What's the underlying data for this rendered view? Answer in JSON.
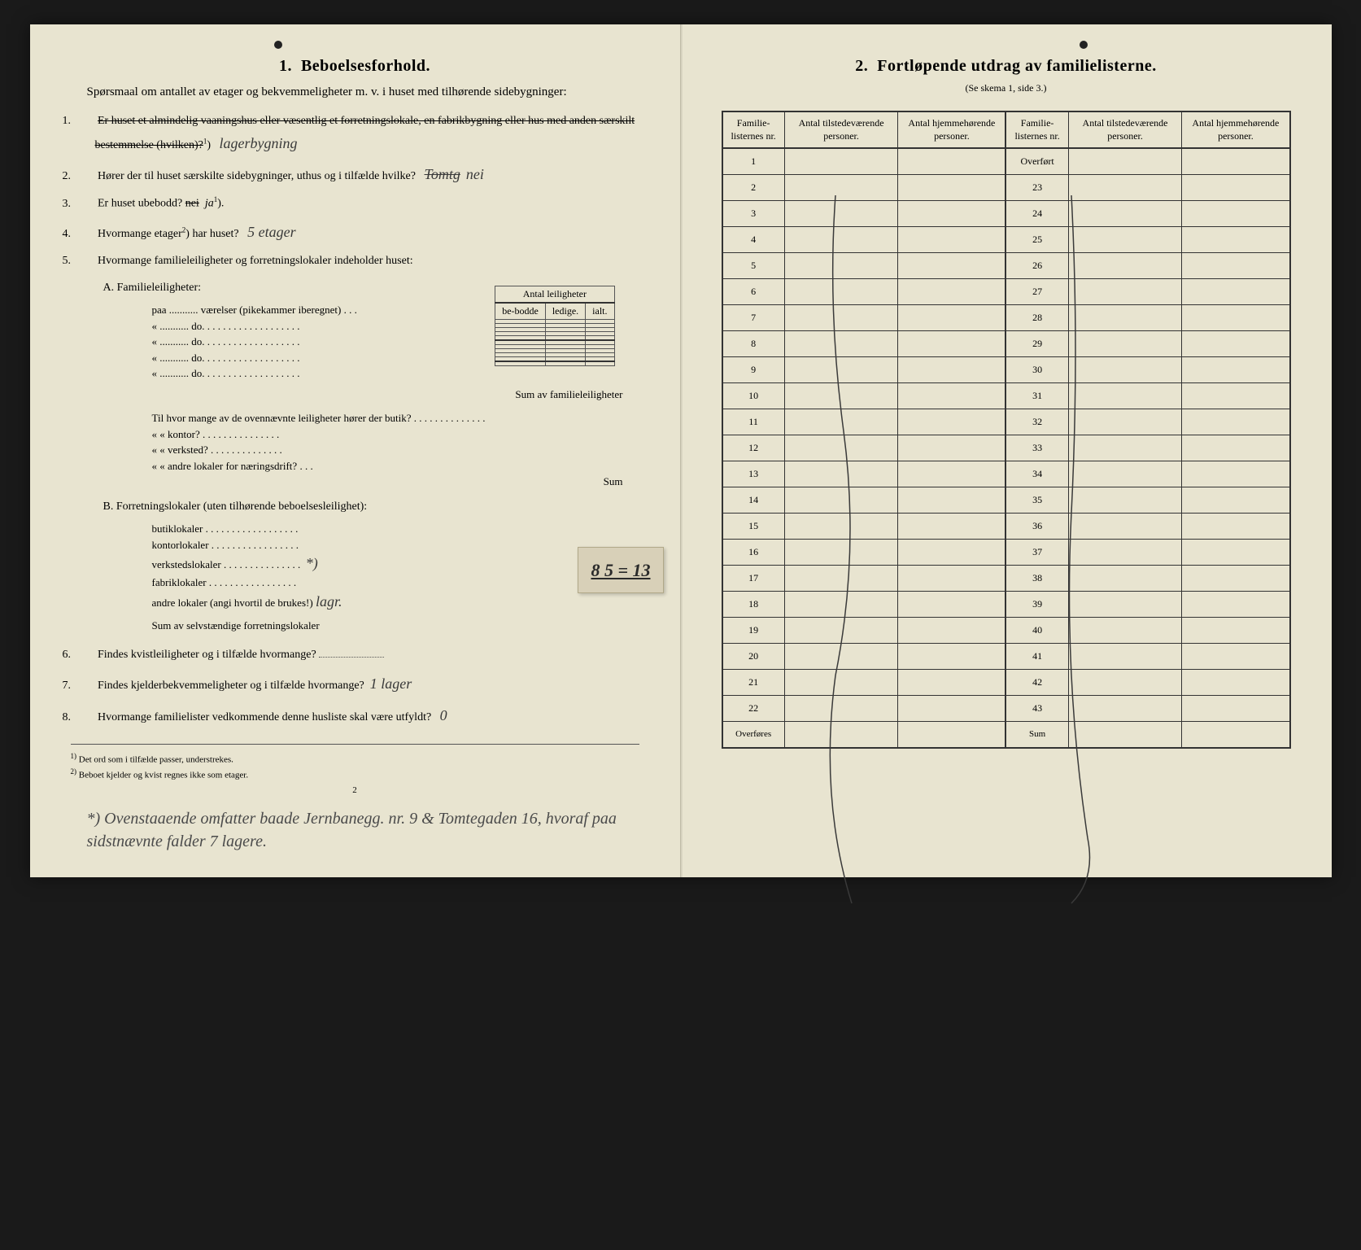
{
  "left": {
    "section_number": "1.",
    "section_title": "Beboelsesforhold.",
    "intro": "Spørsmaal om antallet av etager og bekvemmeligheter m. v. i huset med tilhørende sidebygninger:",
    "q1_num": "1.",
    "q1_struck": "Er huset et almindelig vaaningshus eller væsentlig et forretningslokale, en fabrikbygning eller hus med anden særskilt bestemmelse (hvilken)?",
    "q1_sup": "1",
    "q1_answer": "lagerbygning",
    "q2_num": "2.",
    "q2_text": "Hører der til huset særskilte sidebygninger, uthus og i tilfælde hvilke?",
    "q2_answer": "nei",
    "q3_num": "3.",
    "q3_text": "Er huset ubebodd?",
    "q3_struck": "nei",
    "q3_answer": "ja",
    "q3_sup": "1",
    "q4_num": "4.",
    "q4_text": "Hvormange etager",
    "q4_sup": "2",
    "q4_text2": ") har huset?",
    "q4_answer": "5 etager",
    "q5_num": "5.",
    "q5_text": "Hvormange familieleiligheter og forretningslokaler indeholder huset:",
    "small_table_header": "Antal leiligheter",
    "small_table_cols": [
      "be-bodde",
      "ledige.",
      "ialt."
    ],
    "sectionA_label": "A. Familieleiligheter:",
    "sectionA_items": [
      "paa ........... værelser (pikekammer iberegnet) . . .",
      "« ........... do. . . . . . . . . . . . . . . . . . .",
      "« ........... do. . . . . . . . . . . . . . . . . . .",
      "« ........... do. . . . . . . . . . . . . . . . . . .",
      "« ........... do. . . . . . . . . . . . . . . . . . ."
    ],
    "sectionA_sum": "Sum av familieleiligheter",
    "sectionA_followup": "Til hvor mange av de ovennævnte leiligheter hører der butik? . . . . . . . . . . . . . .",
    "sectionA_sub": [
      "«     « kontor? . . . . . . . . . . . . . . .",
      "«     « verksted? . . . . . . . . . . . . . .",
      "«     « andre lokaler for næringsdrift? . . ."
    ],
    "sectionA_sum2": "Sum",
    "sectionB_label": "B. Forretningslokaler (uten tilhørende beboelsesleilighet):",
    "sectionB_items": [
      "butiklokaler . . . . . . . . . . . . . . . . . .",
      "kontorlokaler . . . . . . . . . . . . . . . . .",
      "verkstedslokaler . . . . . . . . . . . . . . .",
      "fabriklokaler . . . . . . . . . . . . . . . . .",
      "andre lokaler (angi hvortil de brukes!)"
    ],
    "sectionB_answer": "lagr.",
    "sectionB_marker": "*)",
    "sectionB_sum": "Sum av selvstændige forretningslokaler",
    "patch_text": "8 5 = 13",
    "q6_num": "6.",
    "q6_text": "Findes kvistleiligheter og i tilfælde hvormange?",
    "q7_num": "7.",
    "q7_text": "Findes kjelderbekvemmeligheter og i tilfælde hvormange?",
    "q7_answer": "1 lager",
    "q8_num": "8.",
    "q8_text": "Hvormange familielister vedkommende denne husliste skal være utfyldt?",
    "q8_answer": "0",
    "footnote1_marker": "1)",
    "footnote1": "Det ord som i tilfælde passer, understrekes.",
    "footnote2_marker": "2)",
    "footnote2": "Beboet kjelder og kvist regnes ikke som etager.",
    "page_num": "2",
    "bottom_note_marker": "*)",
    "bottom_note": "Ovenstaaende omfatter baade Jernbanegg. nr. 9 & Tomtegaden 16, hvoraf paa sidstnævnte falder 7 lagere."
  },
  "right": {
    "section_number": "2.",
    "section_title": "Fortløpende utdrag av familielisterne.",
    "subtitle": "(Se skema 1, side 3.)",
    "headers": {
      "col1": "Familie-listernes nr.",
      "col2": "Antal tilstedeværende personer.",
      "col3": "Antal hjemmehørende personer.",
      "col4": "Familie-listernes nr.",
      "col5": "Antal tilstedeværende personer.",
      "col6": "Antal hjemmehørende personer."
    },
    "left_rows": [
      "1",
      "2",
      "3",
      "4",
      "5",
      "6",
      "7",
      "8",
      "9",
      "10",
      "11",
      "12",
      "13",
      "14",
      "15",
      "16",
      "17",
      "18",
      "19",
      "20",
      "21",
      "22"
    ],
    "left_footer": "Overføres",
    "right_first": "Overført",
    "right_rows": [
      "23",
      "24",
      "25",
      "26",
      "27",
      "28",
      "29",
      "30",
      "31",
      "32",
      "33",
      "34",
      "35",
      "36",
      "37",
      "38",
      "39",
      "40",
      "41",
      "42",
      "43"
    ],
    "right_footer": "Sum"
  },
  "colors": {
    "paper": "#e8e4d0",
    "ink": "#2a2a2a",
    "handwriting": "#3a3a3a",
    "patch": "#d8d0b8",
    "border": "#333333"
  }
}
